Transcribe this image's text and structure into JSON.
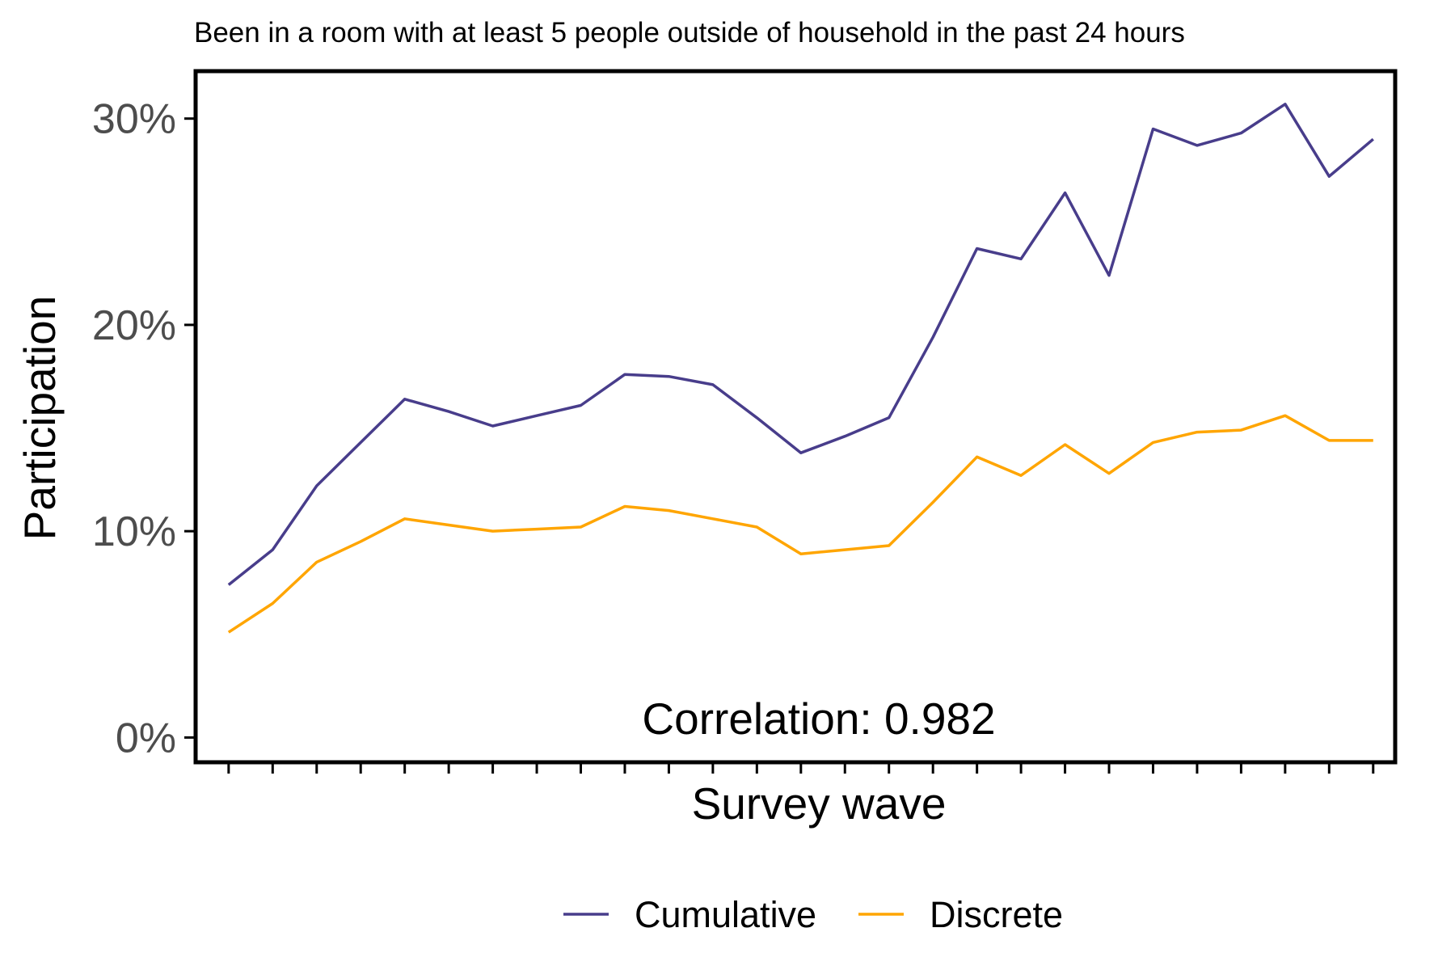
{
  "chart_data": {
    "type": "line",
    "title": "Been in a room with at least 5 people outside of household in the past 24 hours",
    "xlabel": "Survey wave",
    "ylabel": "Participation",
    "x": [
      1,
      2,
      3,
      4,
      5,
      6,
      7,
      8,
      9,
      10,
      11,
      12,
      13,
      14,
      15,
      16,
      17,
      18,
      19,
      20,
      21,
      22,
      23,
      24,
      25,
      26,
      27
    ],
    "xlim": [
      0.25,
      27.5
    ],
    "ylim": [
      -0.012,
      0.323
    ],
    "y_ticks": [
      0,
      0.1,
      0.2,
      0.3
    ],
    "y_tick_labels": [
      "0%",
      "10%",
      "20%",
      "30%"
    ],
    "series": [
      {
        "name": "Cumulative",
        "color": "#483d8b",
        "values": [
          0.074,
          0.091,
          0.122,
          0.143,
          0.164,
          0.158,
          0.151,
          0.156,
          0.161,
          0.176,
          0.175,
          0.171,
          0.155,
          0.138,
          0.146,
          0.155,
          0.194,
          0.237,
          0.232,
          0.264,
          0.224,
          0.295,
          0.287,
          0.293,
          0.307,
          0.272,
          0.29
        ]
      },
      {
        "name": "Discrete",
        "color": "#ffa500",
        "values": [
          0.051,
          0.065,
          0.085,
          0.095,
          0.106,
          0.103,
          0.1,
          0.101,
          0.102,
          0.112,
          0.11,
          0.106,
          0.102,
          0.089,
          0.091,
          0.093,
          0.114,
          0.136,
          0.127,
          0.142,
          0.128,
          0.143,
          0.148,
          0.149,
          0.156,
          0.144,
          0.144
        ]
      }
    ],
    "annotation": "Correlation: 0.982",
    "grid": false,
    "legend_position": "bottom"
  }
}
